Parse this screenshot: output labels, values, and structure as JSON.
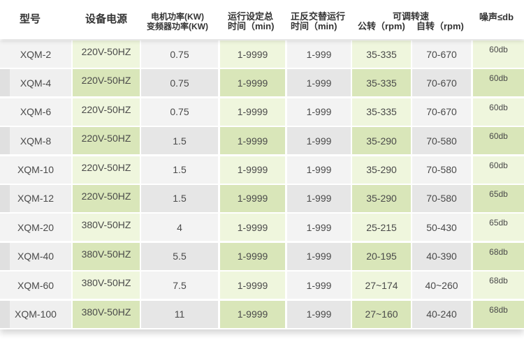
{
  "header": {
    "model": "型号",
    "power_supply": "设备电源",
    "motor_power_line1": "电机功率(KW)",
    "motor_power_line2": "变频器功率(KW)",
    "total_time_line1": "运行设定总",
    "total_time_line2": "时间（min)",
    "alt_time_line1": "正反交替运行",
    "alt_time_line2": "时间（min)",
    "speed_title": "可调转速",
    "revolution": "公转（rpm)",
    "rotation": "自转（rpm)",
    "noise": "噪声≤db"
  },
  "rows": [
    {
      "model": "XQM-2",
      "supply": "220V-50HZ",
      "power": "0.75",
      "total": "1-9999",
      "alt": "1-999",
      "rev": "35-335",
      "rot": "70-670",
      "noise": "60db"
    },
    {
      "model": "XQM-4",
      "supply": "220V-50HZ",
      "power": "0.75",
      "total": "1-9999",
      "alt": "1-999",
      "rev": "35-335",
      "rot": "70-670",
      "noise": "60db"
    },
    {
      "model": "XQM-6",
      "supply": "220V-50HZ",
      "power": "0.75",
      "total": "1-9999",
      "alt": "1-999",
      "rev": "35-335",
      "rot": "70-670",
      "noise": "60db"
    },
    {
      "model": "XQM-8",
      "supply": "220V-50HZ",
      "power": "1.5",
      "total": "1-9999",
      "alt": "1-999",
      "rev": "35-290",
      "rot": "70-580",
      "noise": "60db"
    },
    {
      "model": "XQM-10",
      "supply": "220V-50HZ",
      "power": "1.5",
      "total": "1-9999",
      "alt": "1-999",
      "rev": "35-290",
      "rot": "70-580",
      "noise": "60db"
    },
    {
      "model": "XQM-12",
      "supply": "220V-50HZ",
      "power": "1.5",
      "total": "1-9999",
      "alt": "1-999",
      "rev": "35-290",
      "rot": "70-580",
      "noise": "65db"
    },
    {
      "model": "XQM-20",
      "supply": "380V-50HZ",
      "power": "4",
      "total": "1-9999",
      "alt": "1-999",
      "rev": "25-215",
      "rot": "50-430",
      "noise": "65db"
    },
    {
      "model": "XQM-40",
      "supply": "380V-50HZ",
      "power": "5.5",
      "total": "1-9999",
      "alt": "1-999",
      "rev": "20-195",
      "rot": "40-390",
      "noise": "68db"
    },
    {
      "model": "XQM-60",
      "supply": "380V-50HZ",
      "power": "7.5",
      "total": "1-9999",
      "alt": "1-999",
      "rev": "27~174",
      "rot": "40~260",
      "noise": "68db"
    },
    {
      "model": "XQM-100",
      "supply": "380V-50HZ",
      "power": "11",
      "total": "1-9999",
      "alt": "1-999",
      "rev": "27~160",
      "rot": "40-240",
      "noise": "68db"
    }
  ]
}
